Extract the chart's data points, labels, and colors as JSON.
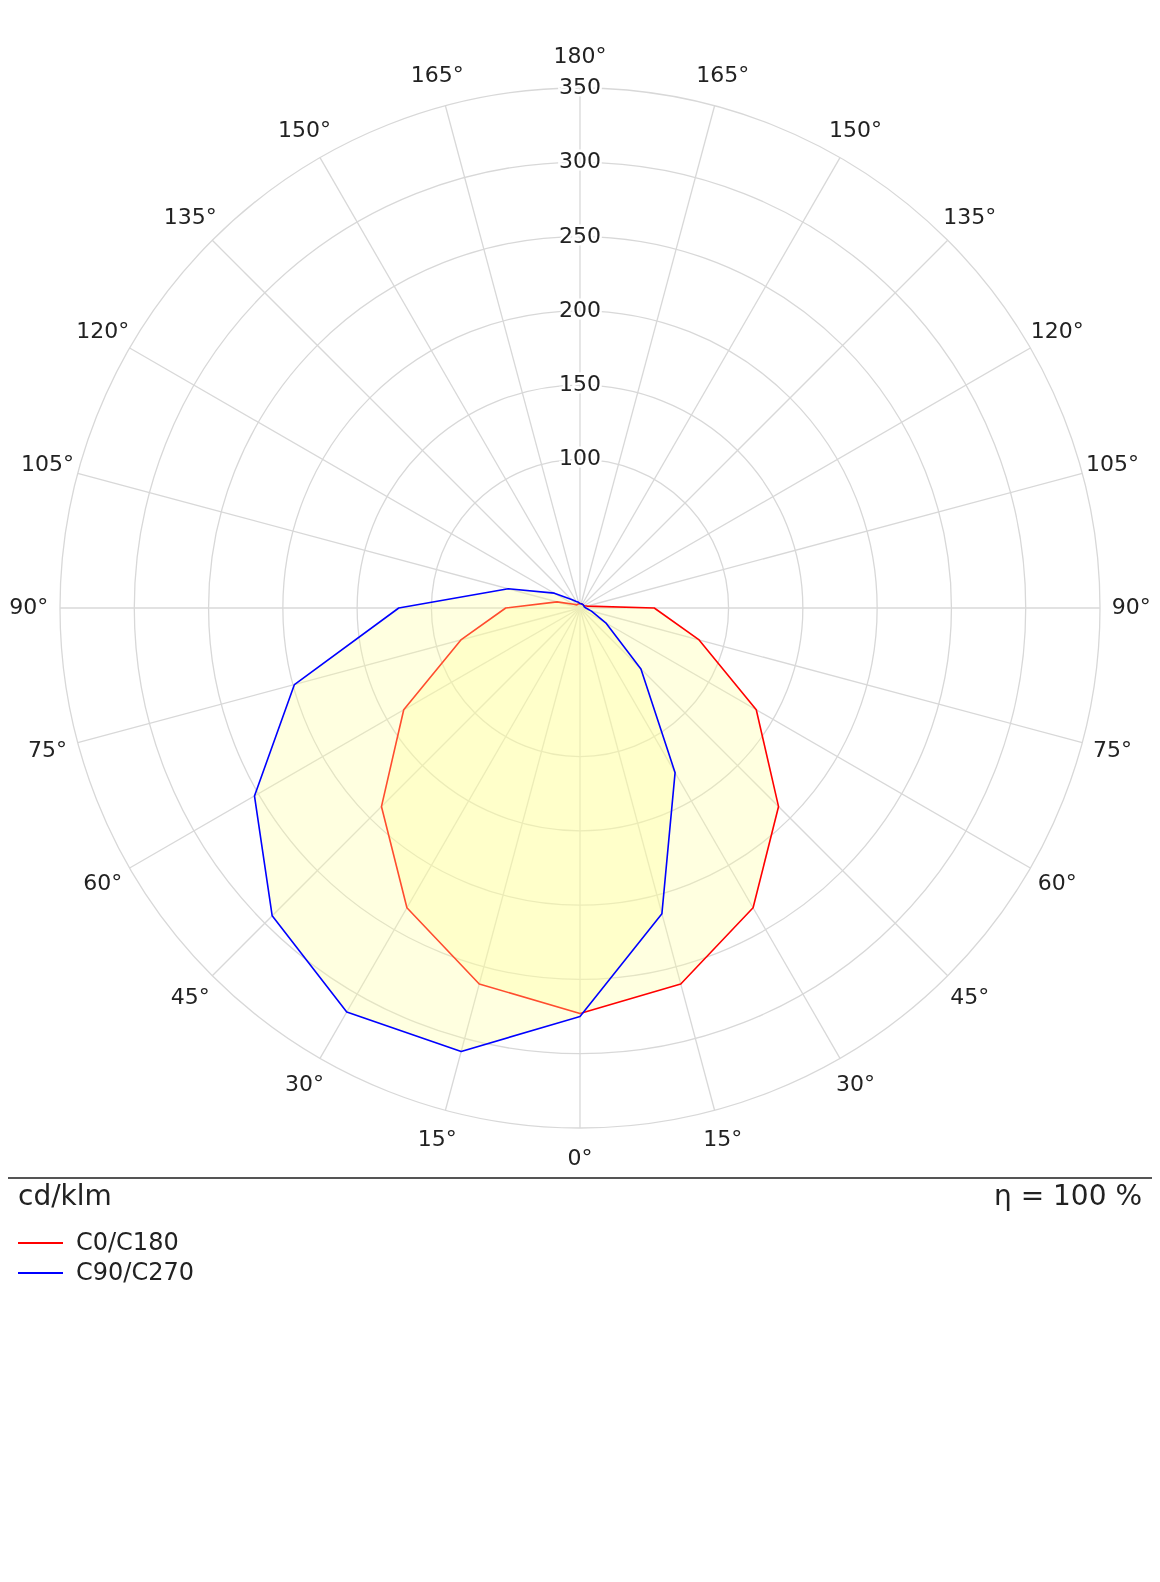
{
  "chart_data": {
    "type": "radar",
    "categories": [
      "180°",
      "165°",
      "150°",
      "135°",
      "120°",
      "105°",
      "90°",
      "75°",
      "60°",
      "45°",
      "30°",
      "15°",
      "0°",
      "15°",
      "30°",
      "45°",
      "60°",
      "75°",
      "90°",
      "105°",
      "120°",
      "135°",
      "150°",
      "165°"
    ],
    "series": [
      {
        "name": "C0/C180",
        "color": "#ff0000",
        "values": [
          3,
          3,
          3,
          3,
          3,
          5,
          50,
          83,
          137,
          189,
          233,
          262,
          273,
          262,
          233,
          189,
          137,
          83,
          50,
          16,
          5,
          3,
          3,
          3
        ]
      },
      {
        "name": "C90/C270",
        "color": "#0000ff",
        "values": [
          3,
          3,
          3,
          3,
          3,
          3,
          4,
          8,
          20,
          58,
          128,
          213,
          275,
          309,
          314,
          293,
          253,
          199,
          122,
          50,
          20,
          8,
          5,
          4
        ]
      }
    ],
    "ylim": [
      0,
      350
    ],
    "yticks": [
      100,
      150,
      200,
      250,
      300,
      350
    ],
    "grid": true,
    "legend": "bottom left",
    "annotations": [
      "cd/klm",
      "η = 100 %"
    ]
  }
}
